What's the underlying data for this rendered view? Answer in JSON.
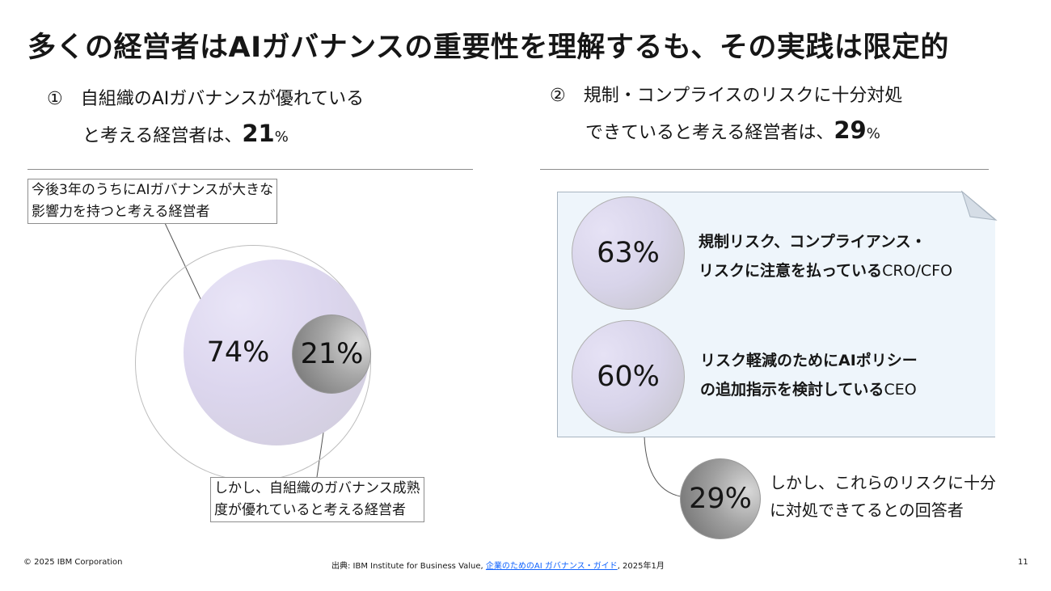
{
  "title": "多くの経営者はAIガバナンスの重要性を理解するも、その実践は限定的",
  "left": {
    "line1": "①　自組織のAIガバナンスが優れている",
    "line2_prefix": "　　と考える経営者は、",
    "number": "21",
    "unit": "%",
    "callout_top": [
      "今後3年のうちにAIガバナンスが大きな",
      "影響力を持つと考える経営者"
    ],
    "circle_big_label": "74%",
    "circle_small_label": "21%",
    "callout_bottom": [
      "しかし、自組織のガバナンス成熟",
      "度が優れていると考える経営者"
    ]
  },
  "right": {
    "line1": "②　規制・コンプライスのリスクに十分対処",
    "line2_prefix": "　　できていると考える経営者は、",
    "number": "29",
    "unit": "%",
    "items": [
      {
        "value": "63%",
        "line1": "規制リスク、コンプライアンス・",
        "line2": "リスクに注意を払っている",
        "role": "CRO/CFO"
      },
      {
        "value": "60%",
        "line1": "リスク軽減のためにAIポリシー",
        "line2": "の追加指示を検討している",
        "role": "CEO"
      }
    ],
    "final": {
      "value": "29%",
      "line1": "しかし、これらのリスクに十分",
      "line2": "に対処できてるとの回答者"
    }
  },
  "footer": {
    "copyright": "© 2025 IBM Corporation",
    "source_prefix": "出典: IBM Institute for Business Value, ",
    "source_link": "企業のためのAI ガバナンス・ガイド",
    "source_suffix": ", 2025年1月",
    "page": "11"
  }
}
